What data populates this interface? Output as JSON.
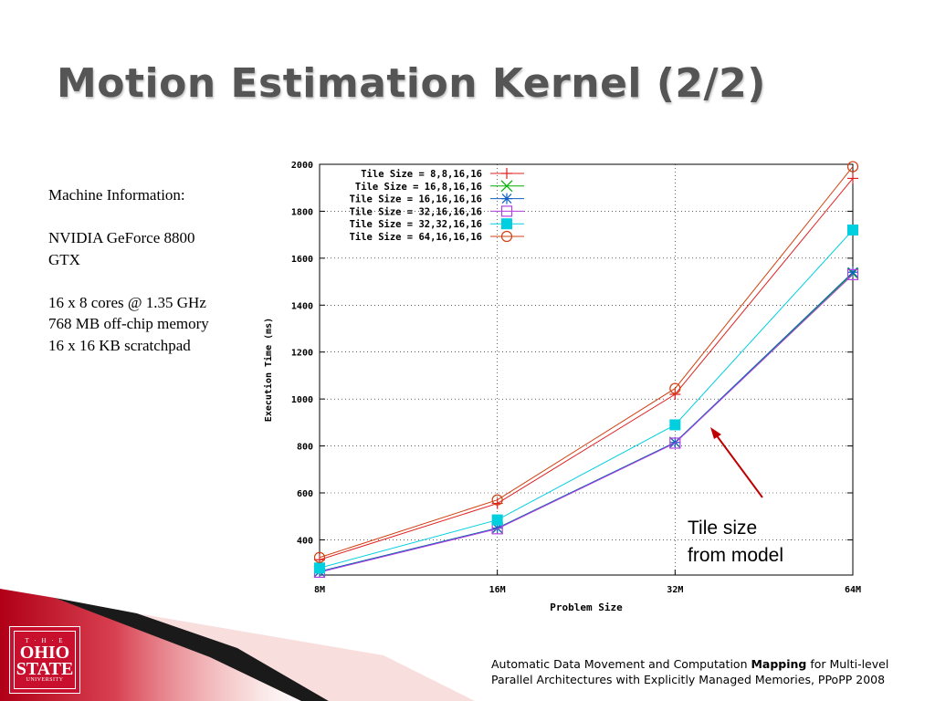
{
  "slide": {
    "title": "Motion Estimation Kernel (2/2)",
    "machine_lines": [
      "Machine Information:",
      "NVIDIA GeForce 8800",
      "GTX",
      "16 x 8 cores @ 1.35 GHz",
      "768 MB off-chip memory",
      "16 x 16 KB scratchpad"
    ],
    "annotation": [
      "Tile size",
      "from model"
    ],
    "footer": {
      "pre": "Automatic Data Movement and Computation ",
      "bold": "Mapping",
      "post": " for Multi-level",
      "line2": "Parallel Architectures with Explicitly Managed Memories, PPoPP 2008"
    },
    "logo": {
      "line1": "T · H · E",
      "line2": "OHIO",
      "line3": "STATE",
      "line4": "UNIVERSITY"
    },
    "colors": {
      "title": "#555555",
      "brand_red": "#c8102e",
      "arrow": "#c00000"
    }
  },
  "chart_data": {
    "type": "line",
    "xlabel": "Problem Size",
    "ylabel": "Execution Time (ms)",
    "categories": [
      "8M",
      "16M",
      "32M",
      "64M"
    ],
    "ylim": [
      250,
      2000
    ],
    "yticks": [
      400,
      600,
      800,
      1000,
      1200,
      1400,
      1600,
      1800,
      2000
    ],
    "legend_position": "top-left",
    "series": [
      {
        "name": "Tile Size = 8,8,16,16",
        "values": [
          315,
          555,
          1020,
          1940
        ],
        "color": "#e02020",
        "marker": "plus"
      },
      {
        "name": "Tile Size = 16,8,16,16",
        "values": [
          265,
          450,
          815,
          1535
        ],
        "color": "#00b000",
        "marker": "cross"
      },
      {
        "name": "Tile Size = 16,16,16,16",
        "values": [
          265,
          450,
          815,
          1540
        ],
        "color": "#1060c0",
        "marker": "star"
      },
      {
        "name": "Tile Size = 32,16,16,16",
        "values": [
          262,
          447,
          812,
          1530
        ],
        "color": "#b040e0",
        "marker": "square"
      },
      {
        "name": "Tile Size = 32,32,16,16",
        "values": [
          280,
          485,
          890,
          1720
        ],
        "color": "#00cfe0",
        "marker": "filled-square"
      },
      {
        "name": "Tile Size = 64,16,16,16",
        "values": [
          325,
          570,
          1045,
          1990
        ],
        "color": "#d04010",
        "marker": "circle"
      }
    ]
  }
}
